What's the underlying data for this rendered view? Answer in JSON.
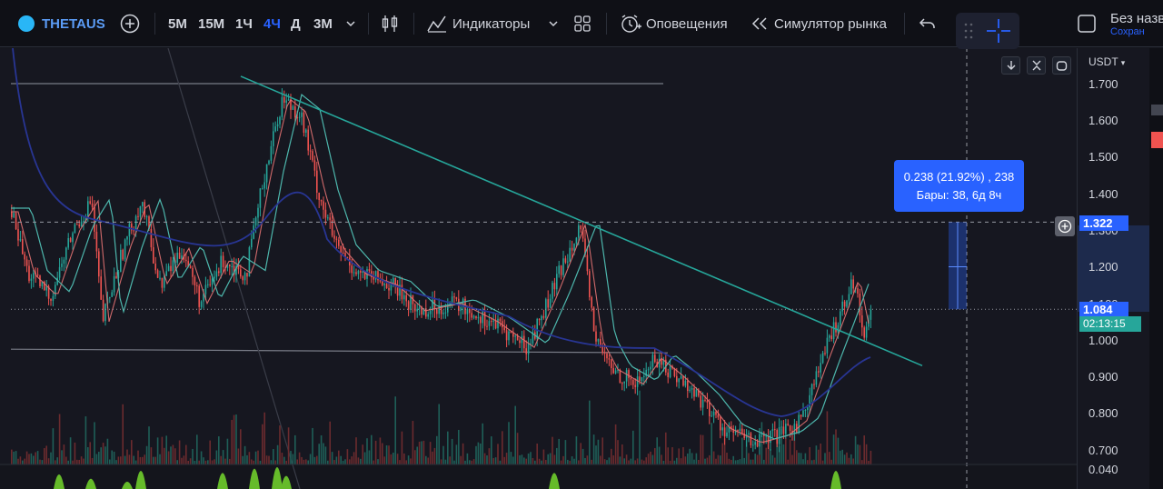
{
  "toolbar": {
    "symbol": "THETAUS",
    "timeframes": [
      "5M",
      "15M",
      "1Ч",
      "4Ч",
      "Д",
      "3М"
    ],
    "active_timeframe": "4Ч",
    "indicators_label": "Индикаторы",
    "alerts_label": "Оповещения",
    "simulator_label": "Симулятор рынка",
    "layout_title": "Без назв",
    "layout_subtitle": "Сохран"
  },
  "price_axis": {
    "currency": "USDT",
    "ticks": [
      "1.700",
      "1.600",
      "1.500",
      "1.400",
      "1.300",
      "1.200",
      "1.100",
      "1.000",
      "0.900",
      "0.800",
      "0.700",
      "0.040"
    ],
    "cursor_price": "1.322",
    "current_price": "1.084",
    "countdown": "02:13:15"
  },
  "measure": {
    "line1": "0.238 (21.92%) , 238",
    "line2": "Бары: 38, 6д 8ч"
  },
  "colors": {
    "up": "#26a69a",
    "down": "#ef5350",
    "accent": "#2962ff",
    "trendline": "#26a69a"
  },
  "chart_data": {
    "type": "candlestick",
    "price_range": [
      0.68,
      1.78
    ],
    "trend_line": {
      "from_price": 1.72,
      "to_price": 0.93
    },
    "ma_fast": "red",
    "ma_mid": "teal",
    "ma_slow": "blue"
  }
}
